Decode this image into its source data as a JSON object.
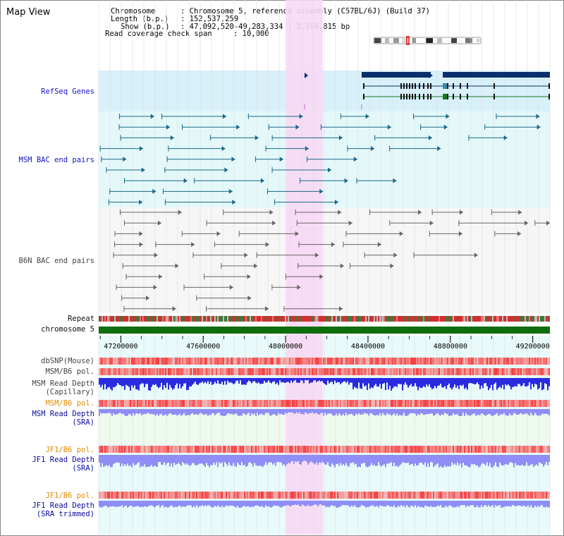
{
  "title": "Map View",
  "info": {
    "chromosome_label": "Chromosome",
    "chromosome_value": ": Chromosome 5, reference assembly (C57BL/6J) (Build 37)",
    "length_label": "Length (b.p.)",
    "length_value": ": 152,537,259",
    "show_label": "Show (b.p.)",
    "show_value": ": 47,092,520-49,283,334 : 2,190,815 bp",
    "coverage_label": "Read coverage check span",
    "coverage_value": ": 10,000"
  },
  "tracks": {
    "refseq": "RefSeq Genes",
    "msm_bac": "MSM BAC end pairs",
    "b6n_bac": "B6N BAC end pairs",
    "repeat": "Repeat",
    "chromosome": "chromosome 5",
    "dbsnp": "dbSNP(Mouse)",
    "msm_b6_pol": "MSM/B6 pol.",
    "msm_read_depth_cap_1": "MSM Read Depth",
    "msm_read_depth_cap_2": "(Capillary)",
    "msm_b6_pol_2": "MSM/B6 pol.",
    "msm_read_depth_sra_1": "MSM Read Depth",
    "msm_read_depth_sra_2": "(SRA)",
    "jf1_b6_pol": "JF1/B6 pol.",
    "jf1_read_depth_sra_1": "JF1 Read Depth",
    "jf1_read_depth_sra_2": "(SRA)",
    "jf1_b6_pol_2": "JF1/B6 pol.",
    "jf1_read_depth_trim_1": "JF1 Read Depth",
    "jf1_read_depth_trim_2": "(SRA trimmed)"
  },
  "axis": {
    "ticks": [
      "47200000",
      "47600000",
      "48000000",
      "48400000",
      "48800000",
      "49200000"
    ],
    "tick_values": [
      47200000,
      47600000,
      48000000,
      48400000,
      48800000,
      49200000
    ],
    "range_start": 47092520,
    "range_end": 49283334
  },
  "highlight_region": {
    "start": 48000000,
    "end": 48180000
  },
  "colors": {
    "refseq_bg": "#d8f0fa",
    "msm_bg": "#e4f8fa",
    "b6n_bg": "#f6f6f6",
    "highlight": "#f8d8f4",
    "gene_dark": "#0a2f6a",
    "msm_pair": "#1a6888",
    "b6n_pair": "#666666",
    "chromosome_bar": "#0e6e0e",
    "depth_blue": "#2a2ae0",
    "depth_light": "#8e8ef6",
    "pol_red": "#f05050"
  }
}
